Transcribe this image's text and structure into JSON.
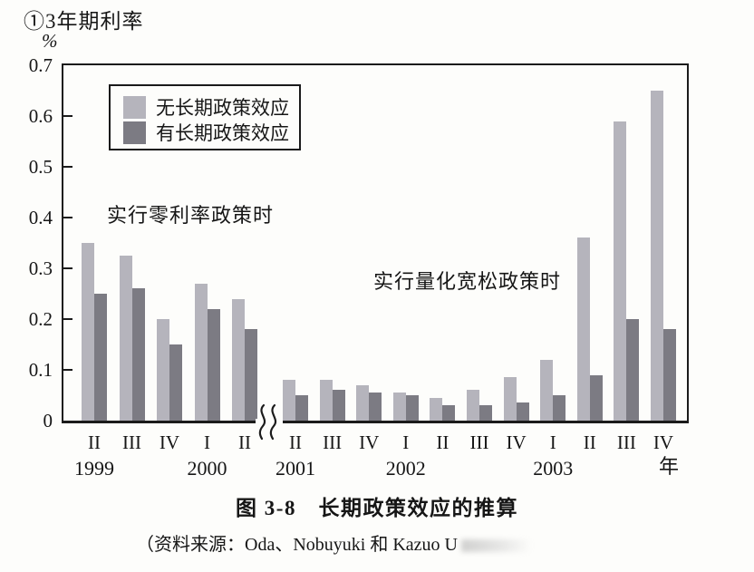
{
  "page": {
    "title": "①3年期利率",
    "caption": "图 3-8　长期政策效应的推算",
    "source": "（资料来源：Oda、Nobuyuki 和 Kazuo U"
  },
  "legend": {
    "items": [
      {
        "label": "无长期政策效应",
        "color": "#b5b4bc"
      },
      {
        "label": "有长期政策效应",
        "color": "#7c7b83"
      }
    ]
  },
  "annotations": [
    {
      "text": "实行零利率政策时"
    },
    {
      "text": "实行量化宽松政策时"
    }
  ],
  "chart_data": {
    "type": "bar",
    "title": "①3年期利率",
    "xlabel": "",
    "ylabel": "%",
    "ylim": [
      0,
      0.7
    ],
    "yticks": [
      "0.7",
      "0.6",
      "0.5",
      "0.4",
      "0.3",
      "0.2",
      "0.1",
      "0"
    ],
    "grid": false,
    "legend_position": "upper-left-inside",
    "x_suffix": "年",
    "axis_break_after_index": 4,
    "series": [
      {
        "name": "无长期政策效应",
        "color": "#b5b4bc"
      },
      {
        "name": "有长期政策效应",
        "color": "#7c7b83"
      }
    ],
    "groups": [
      {
        "year": "1999",
        "quarter": "II",
        "no_effect": 0.35,
        "with_effect": 0.25,
        "year_label": "1999"
      },
      {
        "year": "1999",
        "quarter": "III",
        "no_effect": 0.325,
        "with_effect": 0.26
      },
      {
        "year": "1999",
        "quarter": "IV",
        "no_effect": 0.2,
        "with_effect": 0.15
      },
      {
        "year": "2000",
        "quarter": "I",
        "no_effect": 0.27,
        "with_effect": 0.22,
        "year_label": "2000"
      },
      {
        "year": "2000",
        "quarter": "II",
        "no_effect": 0.24,
        "with_effect": 0.18
      },
      {
        "year": "2001",
        "quarter": "II",
        "no_effect": 0.08,
        "with_effect": 0.05,
        "year_label": "2001"
      },
      {
        "year": "2001",
        "quarter": "III",
        "no_effect": 0.08,
        "with_effect": 0.06
      },
      {
        "year": "2001",
        "quarter": "IV",
        "no_effect": 0.07,
        "with_effect": 0.055
      },
      {
        "year": "2002",
        "quarter": "I",
        "no_effect": 0.055,
        "with_effect": 0.05,
        "year_label": "2002"
      },
      {
        "year": "2002",
        "quarter": "II",
        "no_effect": 0.045,
        "with_effect": 0.03
      },
      {
        "year": "2002",
        "quarter": "III",
        "no_effect": 0.06,
        "with_effect": 0.03
      },
      {
        "year": "2002",
        "quarter": "IV",
        "no_effect": 0.085,
        "with_effect": 0.035
      },
      {
        "year": "2003",
        "quarter": "I",
        "no_effect": 0.12,
        "with_effect": 0.05,
        "year_label": "2003"
      },
      {
        "year": "2003",
        "quarter": "II",
        "no_effect": 0.36,
        "with_effect": 0.09
      },
      {
        "year": "2003",
        "quarter": "III",
        "no_effect": 0.59,
        "with_effect": 0.2
      },
      {
        "year": "2003",
        "quarter": "IV",
        "no_effect": 0.65,
        "with_effect": 0.18
      }
    ]
  }
}
